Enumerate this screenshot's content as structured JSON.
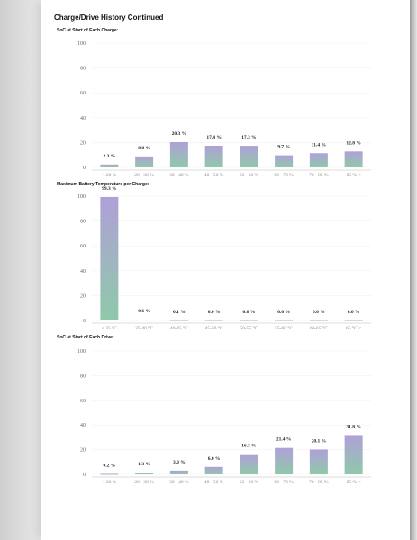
{
  "page_title": "Charge/Drive History Continued",
  "colors": {
    "bar_top": "#b0a0d8",
    "bar_bottom": "#8fc9a9",
    "axis": "#bbbbbb",
    "grid": "#f1f1f1"
  },
  "chart_data": [
    {
      "type": "bar",
      "title": "SoC at Start of Each Charge:",
      "categories": [
        "< 20 %",
        "20 - 30 %",
        "30 - 40 %",
        "40 - 50 %",
        "50 - 60 %",
        "60 - 70 %",
        "70 - 85 %",
        "85 % <"
      ],
      "values": [
        2.3,
        8.8,
        20.3,
        17.4,
        17.3,
        9.7,
        11.4,
        12.8
      ],
      "value_labels": [
        "2.3 %",
        "8.8 %",
        "20.3 %",
        "17.4 %",
        "17.3 %",
        "9.7 %",
        "11.4 %",
        "12.8 %"
      ],
      "ylim": [
        0,
        100
      ],
      "yticks": [
        "0",
        "20",
        "40",
        "60",
        "80",
        "100"
      ]
    },
    {
      "type": "bar",
      "title": "Maximum Battery Temperature per Charge:",
      "categories": [
        "< 35 °C",
        "35-40 °C",
        "40-45 °C",
        "45-50 °C",
        "50-55 °C",
        "55-60 °C",
        "60-65 °C",
        "65 °C <"
      ],
      "values": [
        99.3,
        0.6,
        0.1,
        0.0,
        0.0,
        0.0,
        0.0,
        0.0
      ],
      "value_labels": [
        "99.3 %",
        "0.6 %",
        "0.1 %",
        "0.0 %",
        "0.0 %",
        "0.0 %",
        "0.0 %",
        "0.0 %"
      ],
      "ylim": [
        0,
        100
      ],
      "yticks": [
        "0",
        "20",
        "40",
        "60",
        "80",
        "100"
      ]
    },
    {
      "type": "bar",
      "title": "SoC at Start of Each Drive:",
      "categories": [
        "< 20 %",
        "20 - 30 %",
        "30 - 40 %",
        "40 - 50 %",
        "50 - 60 %",
        "60 - 70 %",
        "70 - 85 %",
        "85 % <"
      ],
      "values": [
        0.2,
        1.3,
        3.0,
        6.0,
        16.3,
        21.4,
        20.1,
        31.8
      ],
      "value_labels": [
        "0.2 %",
        "1.3 %",
        "3.0 %",
        "6.0 %",
        "16.3 %",
        "21.4 %",
        "20.1 %",
        "31.8 %"
      ],
      "ylim": [
        0,
        100
      ],
      "yticks": [
        "0",
        "20",
        "40",
        "60",
        "80",
        "100"
      ]
    }
  ]
}
